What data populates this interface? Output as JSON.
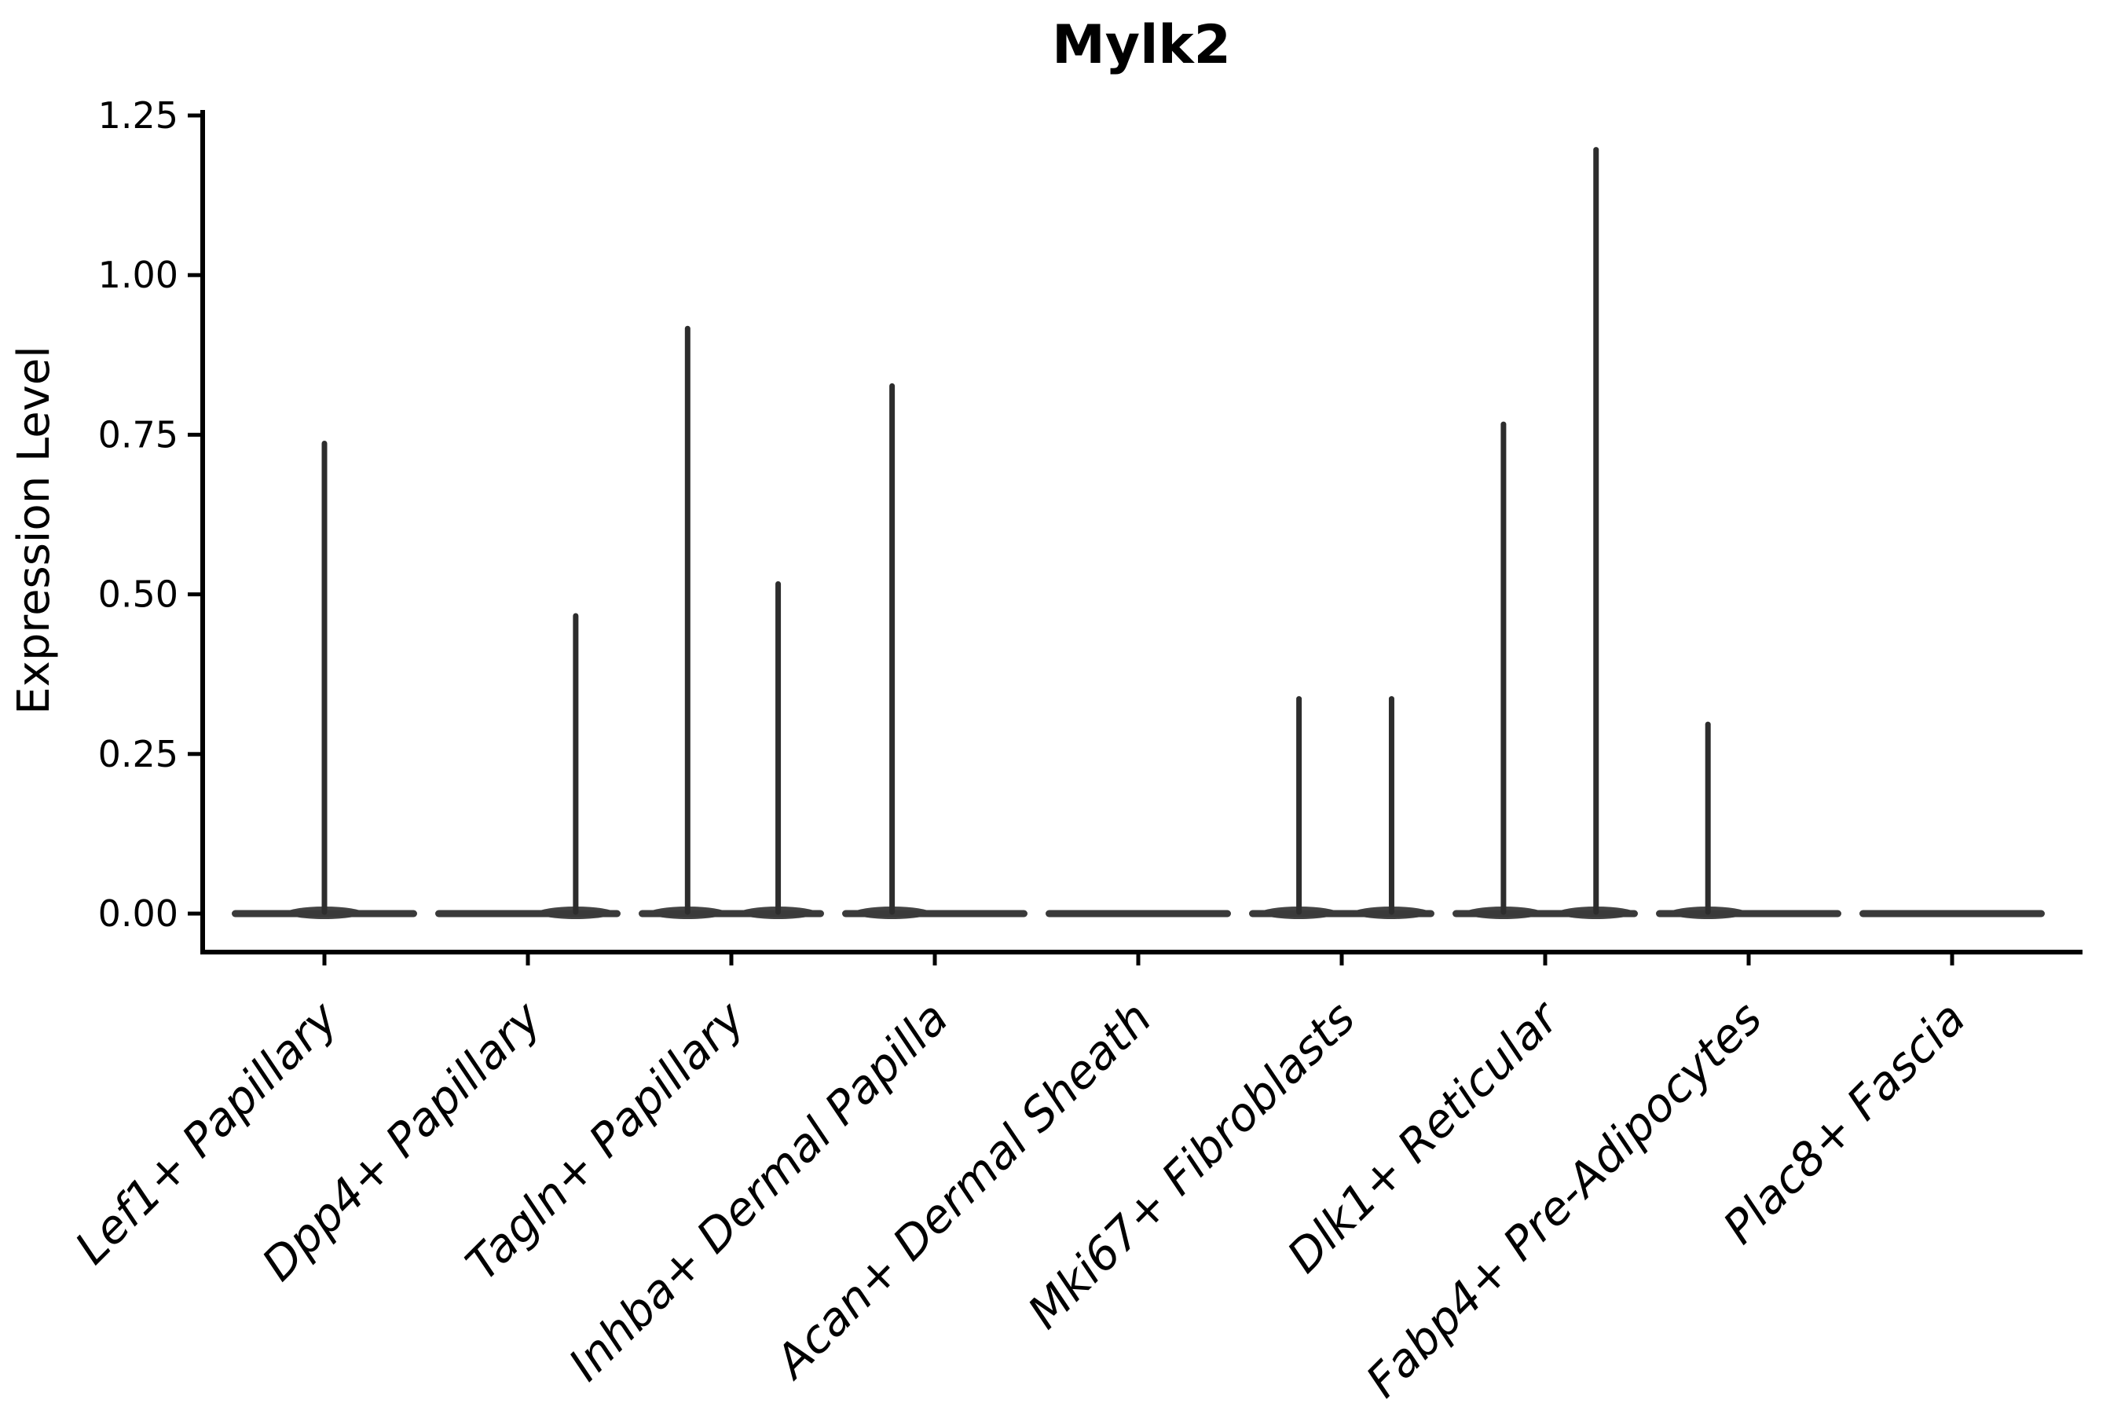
{
  "chart_data": {
    "type": "violin",
    "title": "Mylk2",
    "xlabel": "",
    "ylabel": "Expression Level",
    "ylim": [
      0,
      1.25
    ],
    "yticks": [
      0.0,
      0.25,
      0.5,
      0.75,
      1.0,
      1.25
    ],
    "ytick_labels": [
      "0.00",
      "0.25",
      "0.50",
      "0.75",
      "1.00",
      "1.25"
    ],
    "grid": false,
    "legend": null,
    "categories": [
      "Lef1+ Papillary",
      "Dpp4+ Papillary",
      "Tagln+ Papillary",
      "Inhba+ Dermal Papilla",
      "Acan+ Dermal Sheath",
      "Mki67+ Fibroblasts",
      "Dlk1+ Reticular",
      "Fabp4+ Pre-Adipocytes",
      "Plac8+ Fascia"
    ],
    "violins": [
      {
        "category": "Lef1+ Papillary",
        "baseline": 0,
        "spikes": [
          {
            "offset": 0.0,
            "peak": 0.74
          }
        ]
      },
      {
        "category": "Dpp4+ Papillary",
        "baseline": 0,
        "spikes": [
          {
            "offset": 0.235,
            "peak": 0.47
          }
        ]
      },
      {
        "category": "Tagln+ Papillary",
        "baseline": 0,
        "spikes": [
          {
            "offset": -0.215,
            "peak": 0.92
          },
          {
            "offset": 0.23,
            "peak": 0.52
          }
        ]
      },
      {
        "category": "Inhba+ Dermal Papilla",
        "baseline": 0,
        "spikes": [
          {
            "offset": -0.21,
            "peak": 0.83
          }
        ]
      },
      {
        "category": "Acan+ Dermal Sheath",
        "baseline": 0,
        "spikes": []
      },
      {
        "category": "Mki67+ Fibroblasts",
        "baseline": 0,
        "spikes": [
          {
            "offset": -0.21,
            "peak": 0.34
          },
          {
            "offset": 0.245,
            "peak": 0.34
          }
        ]
      },
      {
        "category": "Dlk1+ Reticular",
        "baseline": 0,
        "spikes": [
          {
            "offset": -0.205,
            "peak": 0.77
          },
          {
            "offset": 0.25,
            "peak": 1.2
          }
        ]
      },
      {
        "category": "Fabp4+ Pre-Adipocytes",
        "baseline": 0,
        "spikes": [
          {
            "offset": -0.2,
            "peak": 0.3
          }
        ]
      },
      {
        "category": "Plac8+ Fascia",
        "baseline": 0,
        "spikes": []
      }
    ],
    "colors": {
      "violin_body": "#3a3a3a",
      "violin_spike": "#2d2d2d",
      "axis": "#000000",
      "text": "#000000",
      "background": "#ffffff"
    }
  }
}
